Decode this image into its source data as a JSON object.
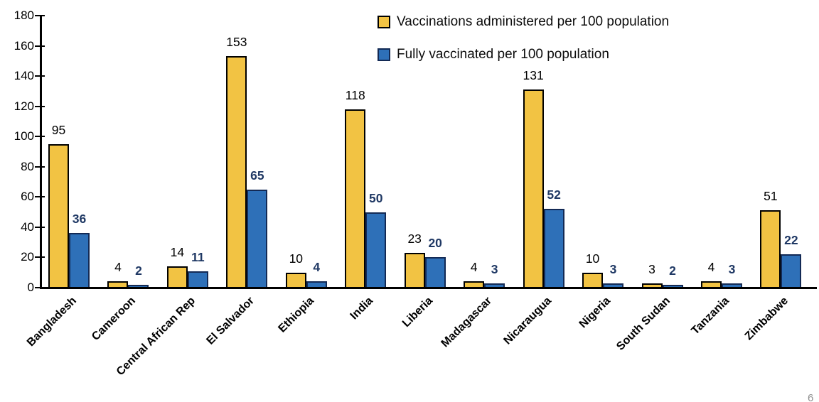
{
  "page_number": "6",
  "chart_data": {
    "type": "bar",
    "title": "",
    "xlabel": "",
    "ylabel": "",
    "categories": [
      "Bangladesh",
      "Cameroon",
      "Central African Rep",
      "El Salvador",
      "Ethiopia",
      "India",
      "Liberia",
      "Madagascar",
      "Nicaraugua",
      "Nigeria",
      "South Sudan",
      "Tanzania",
      "Zimbabwe"
    ],
    "series": [
      {
        "name": "Vaccinations administered per 100 population",
        "values": [
          95,
          4,
          14,
          153,
          10,
          118,
          23,
          4,
          131,
          10,
          3,
          4,
          51
        ],
        "color": "#F2C343",
        "border_color": "#000000",
        "label_color": "#000000",
        "label_bold": false
      },
      {
        "name": "Fully vaccinated per 100 population",
        "values": [
          36,
          2,
          11,
          65,
          4,
          50,
          20,
          3,
          52,
          3,
          2,
          3,
          22
        ],
        "color": "#2E70B8",
        "border_color": "#132A55",
        "label_color": "#1F3864",
        "label_bold": true
      }
    ],
    "ylim": [
      0,
      180
    ],
    "ytick_step": 20,
    "yticks": [
      0,
      20,
      40,
      60,
      80,
      100,
      120,
      140,
      160,
      180
    ],
    "grid": false,
    "data_labels": true,
    "legend_position": "top-right"
  }
}
